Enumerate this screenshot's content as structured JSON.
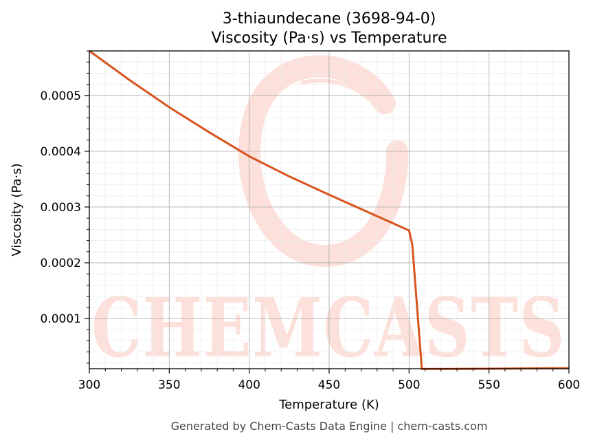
{
  "chart_data": {
    "type": "line",
    "title_line1": "3-thiaundecane (3698-94-0)",
    "title_line2": "Viscosity (Pa·s) vs Temperature",
    "xlabel": "Temperature (K)",
    "ylabel": "Viscosity (Pa·s)",
    "xlim": [
      300,
      600
    ],
    "ylim": [
      1e-05,
      0.00058
    ],
    "xticks": [
      300,
      350,
      400,
      450,
      500,
      550,
      600
    ],
    "xtick_labels": [
      "300",
      "350",
      "400",
      "450",
      "500",
      "550",
      "600"
    ],
    "yticks": [
      0.0001,
      0.0002,
      0.0003,
      0.0004,
      0.0005
    ],
    "ytick_labels": [
      "0.0001",
      "0.0002",
      "0.0003",
      "0.0004",
      "0.0005"
    ],
    "grid": true,
    "series": [
      {
        "color": "#d9531e",
        "x": [
          300,
          325,
          350,
          375,
          400,
          425,
          450,
          475,
          500,
          502,
          508,
          550,
          600
        ],
        "y": [
          0.00058,
          0.000528,
          0.000479,
          0.000434,
          0.000391,
          0.000355,
          0.000322,
          0.00029,
          0.000258,
          0.000233,
          9.5e-06,
          1e-05,
          1.1e-05
        ]
      }
    ]
  },
  "watermark": {
    "text": "CHEMCASTS",
    "color": "#fde0da"
  },
  "footer": "Generated by Chem-Casts Data Engine | chem-casts.com"
}
